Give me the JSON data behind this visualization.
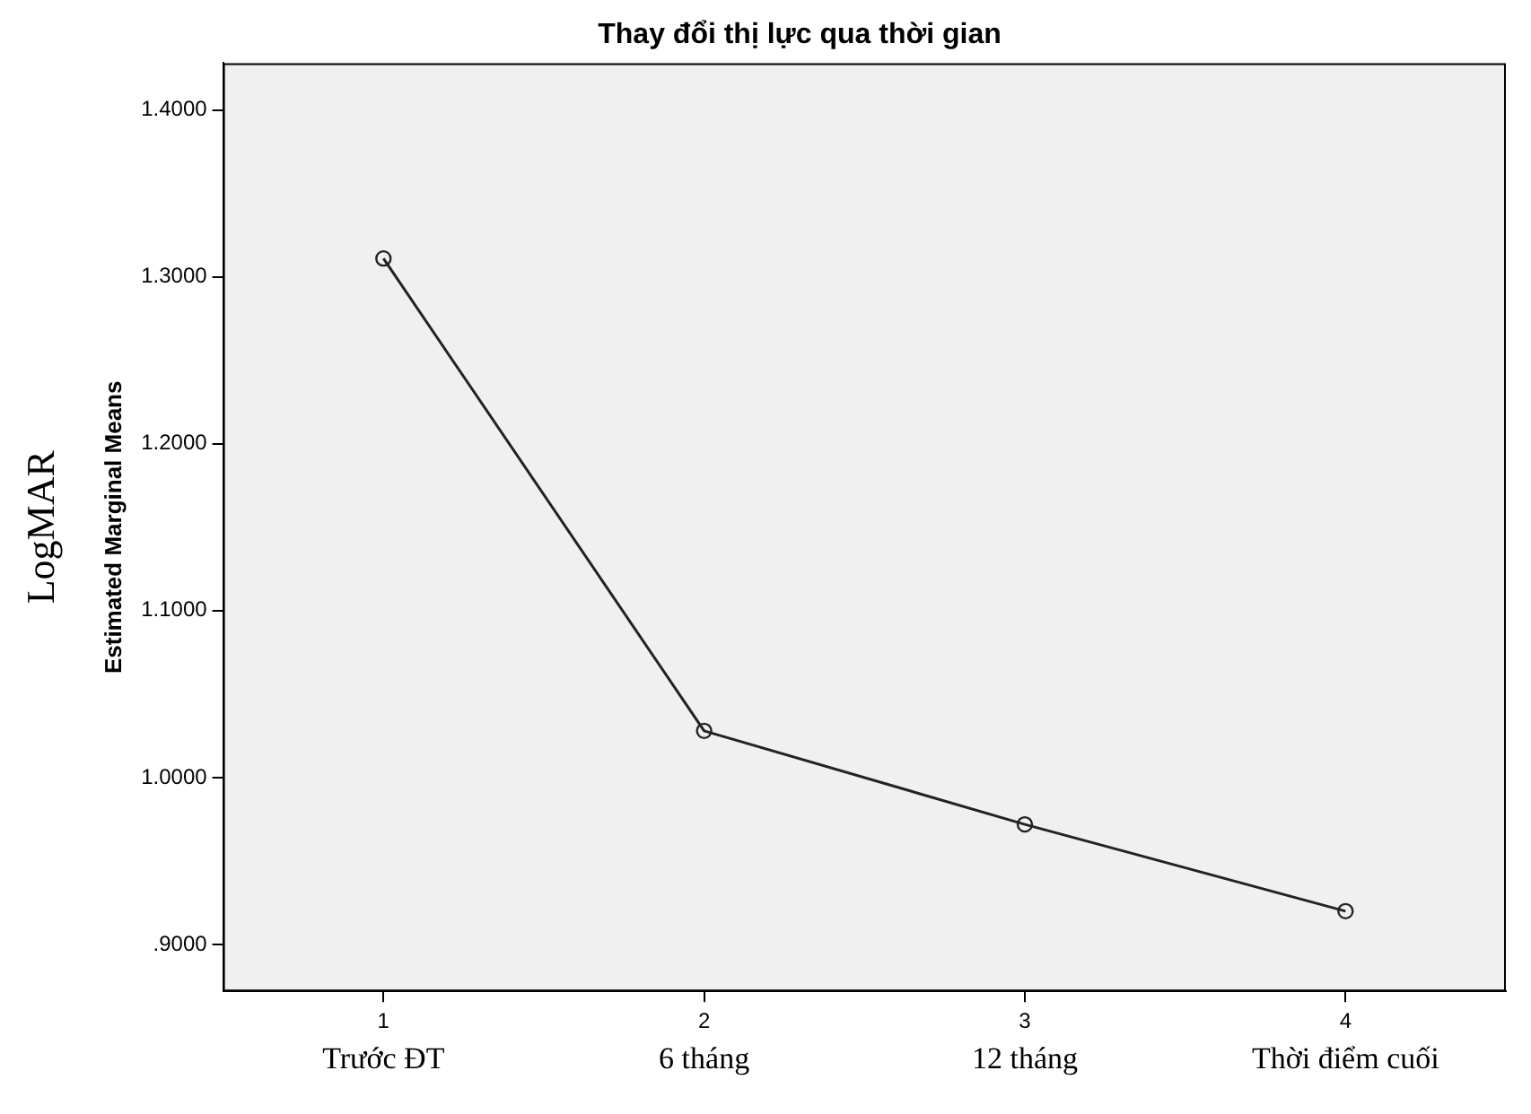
{
  "chart_data": {
    "type": "line",
    "title": "Thay đổi thị lực qua thời gian",
    "ylabel": "Estimated Marginal Means",
    "categories": [
      "1",
      "2",
      "3",
      "4"
    ],
    "series": [
      {
        "color": "#222222",
        "values": [
          1.311,
          1.028,
          0.972,
          0.92
        ]
      }
    ],
    "ylim": [
      0.872,
      1.428
    ],
    "yticks": [
      {
        "value": 0.9,
        "label": ".9000"
      },
      {
        "value": 1.0,
        "label": "1.0000"
      },
      {
        "value": 1.1,
        "label": "1.1000"
      },
      {
        "value": 1.2,
        "label": "1.2000"
      },
      {
        "value": 1.3,
        "label": "1.3000"
      },
      {
        "value": 1.4,
        "label": "1.4000"
      }
    ],
    "annotations": [
      "Trước ĐT",
      "6 tháng",
      "12 tháng",
      "Thời điểm cuối",
      "LogMAR"
    ],
    "grid": false,
    "legend": false,
    "marker": "circle",
    "line_style": "solid"
  }
}
